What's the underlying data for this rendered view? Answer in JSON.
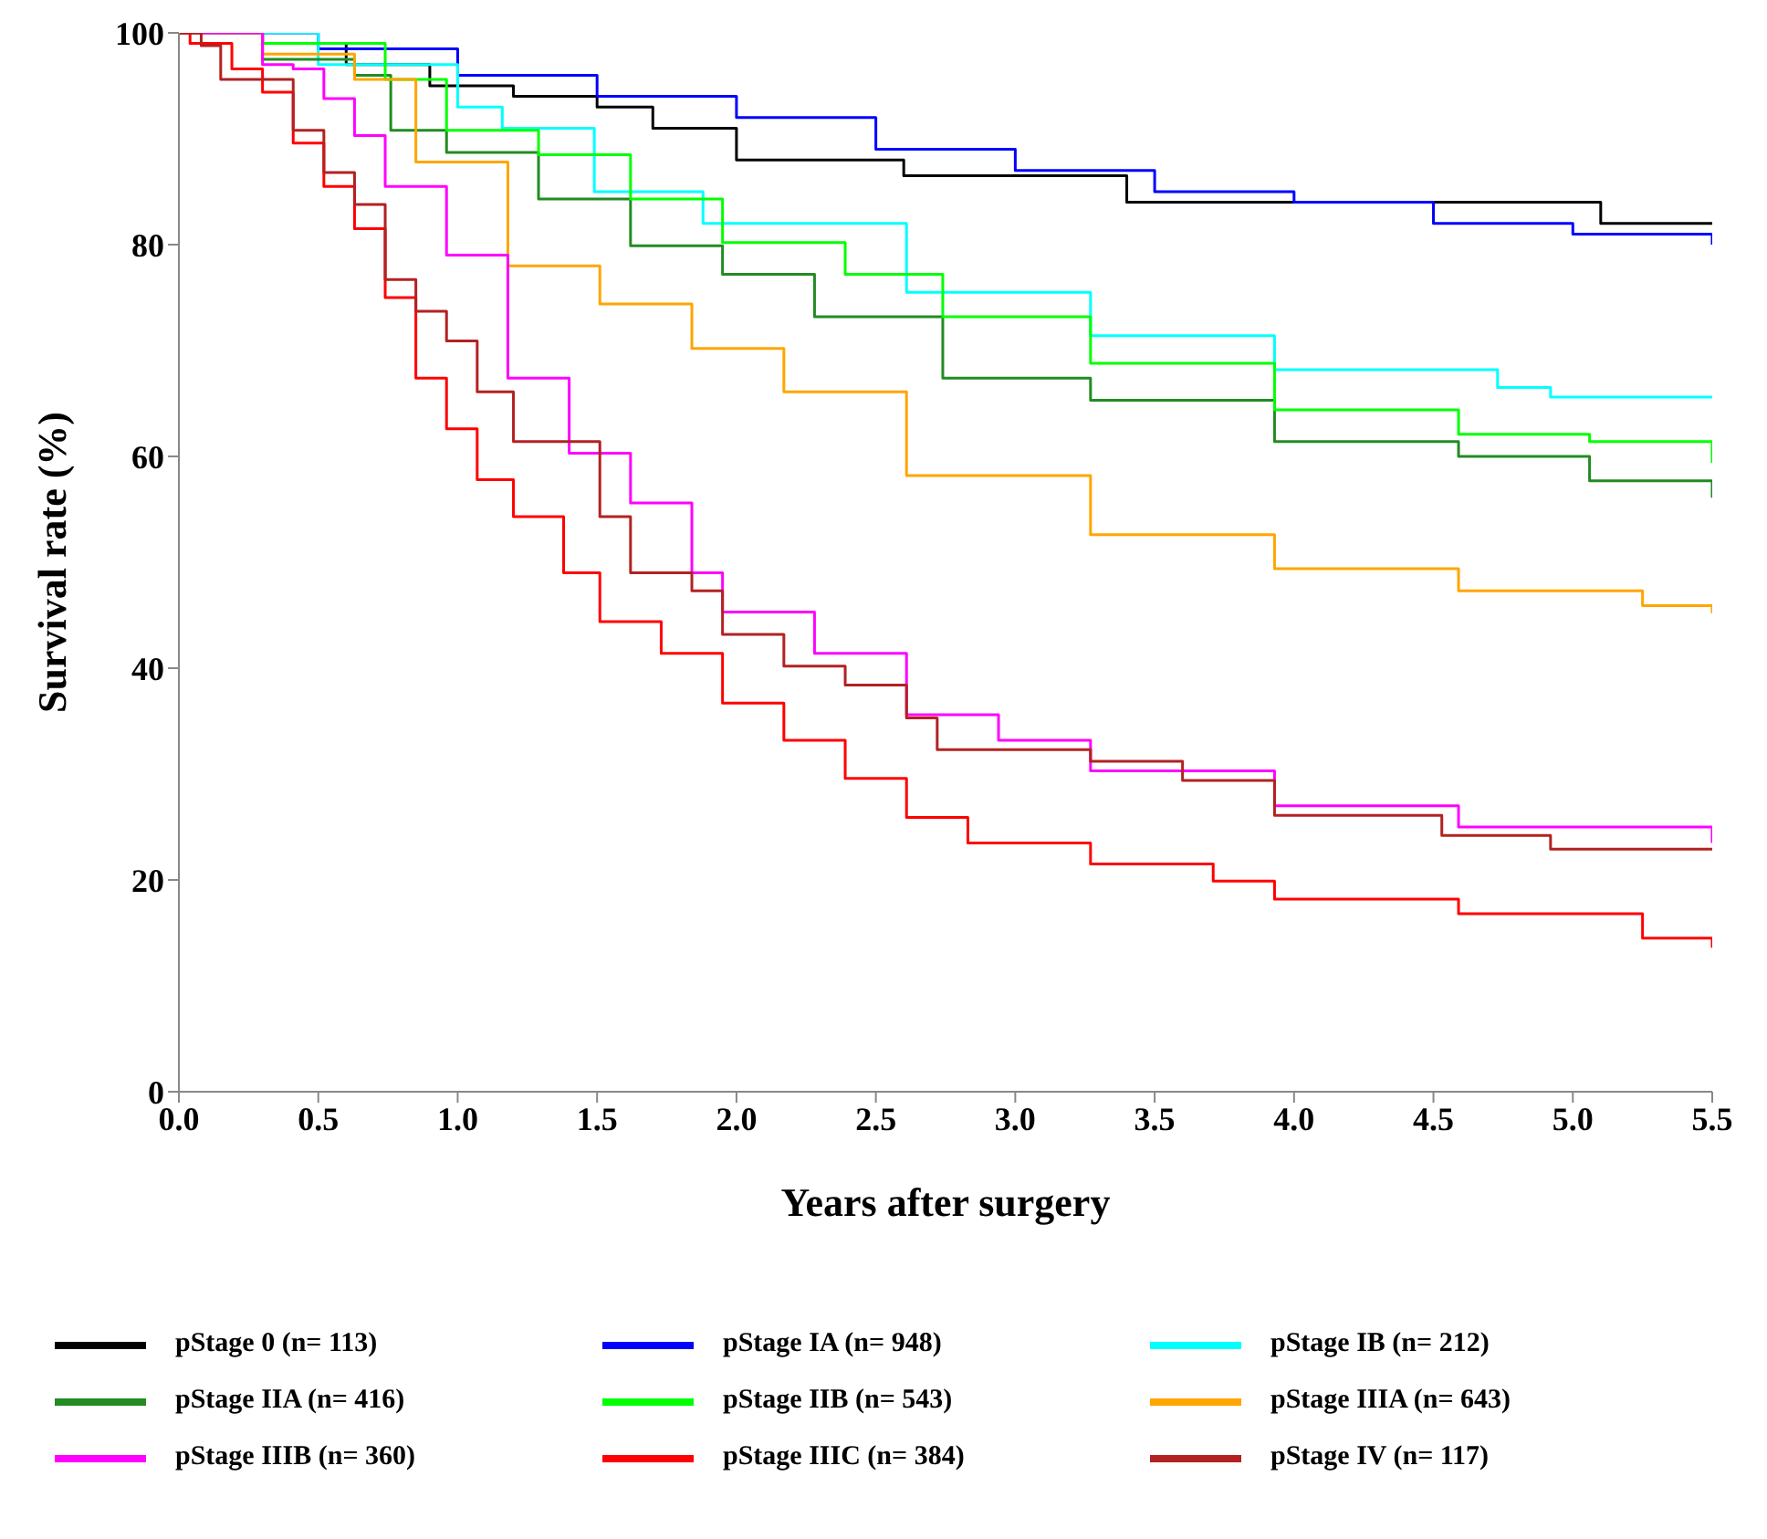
{
  "chart_data": {
    "type": "step",
    "xlabel": "Years after surgery",
    "ylabel": "Survival rate (%)",
    "xlim": [
      0,
      5.5
    ],
    "ylim": [
      0,
      100
    ],
    "xticks": [
      {
        "value": 0,
        "label": "0.0"
      },
      {
        "value": 0.5,
        "label": "0.5"
      },
      {
        "value": 1,
        "label": "1.0"
      },
      {
        "value": 1.5,
        "label": "1.5"
      },
      {
        "value": 2,
        "label": "2.0"
      },
      {
        "value": 2.5,
        "label": "2.5"
      },
      {
        "value": 3,
        "label": "3.0"
      },
      {
        "value": 3.5,
        "label": "3.5"
      },
      {
        "value": 4,
        "label": "4.0"
      },
      {
        "value": 4.5,
        "label": "4.5"
      },
      {
        "value": 5,
        "label": "5.0"
      },
      {
        "value": 5.5,
        "label": "5.5"
      }
    ],
    "yticks": [
      0,
      20,
      40,
      60,
      80,
      100
    ],
    "grid": false,
    "legend": "bottom",
    "marker": "none",
    "line_style": "solid",
    "series": [
      {
        "name": "pStage 0 (n= 113)",
        "color": "#000000",
        "x": [
          0,
          0.3,
          0.6,
          0.9,
          1.2,
          1.5,
          1.7,
          2.0,
          2.6,
          3.4,
          5.1,
          5.5
        ],
        "values": [
          100,
          99,
          97,
          95,
          94,
          93,
          91,
          88,
          86.5,
          84,
          82,
          82
        ]
      },
      {
        "name": "pStage IA (n= 948)",
        "color": "#0000ff",
        "x": [
          0,
          0.5,
          1.0,
          1.5,
          2.0,
          2.5,
          3.0,
          3.5,
          4.0,
          4.5,
          5.0,
          5.5
        ],
        "values": [
          100,
          98.5,
          96,
          94,
          92,
          89,
          87,
          85,
          84,
          82,
          81,
          80
        ]
      },
      {
        "name": "pStage IB (n= 212)",
        "color": "#00ffff",
        "x": [
          0,
          0.5,
          1.0,
          1.16,
          1.49,
          1.88,
          2.61,
          3.27,
          3.93,
          4.73,
          4.92,
          5.5
        ],
        "values": [
          100,
          97,
          93,
          91,
          85,
          82,
          75.5,
          71.4,
          68.2,
          66.5,
          65.6,
          65.6
        ]
      },
      {
        "name": "pStage IIA (n= 416)",
        "color": "#228b22",
        "x": [
          0,
          0.3,
          0.63,
          0.76,
          0.96,
          1.29,
          1.62,
          1.95,
          2.28,
          2.74,
          3.27,
          3.93,
          4.59,
          5.06,
          5.5
        ],
        "values": [
          100,
          97.5,
          96,
          90.8,
          88.7,
          84.3,
          79.9,
          77.2,
          73.2,
          67.4,
          65.3,
          61.4,
          60,
          57.7,
          56.1
        ]
      },
      {
        "name": "pStage IIB (n= 543)",
        "color": "#00ff00",
        "x": [
          0,
          0.3,
          0.74,
          0.96,
          1.29,
          1.62,
          1.95,
          2.39,
          2.74,
          3.27,
          3.93,
          4.59,
          5.06,
          5.5
        ],
        "values": [
          100,
          99,
          95.6,
          90.8,
          88.5,
          84.3,
          80.2,
          77.2,
          73.2,
          68.8,
          64.4,
          62.1,
          61.4,
          59.4
        ]
      },
      {
        "name": "pStage IIIA (n= 643)",
        "color": "#ffa500",
        "x": [
          0,
          0.3,
          0.63,
          0.85,
          1.18,
          1.51,
          1.84,
          2.17,
          2.61,
          3.27,
          3.93,
          4.59,
          5.25,
          5.5
        ],
        "values": [
          100,
          98,
          95.6,
          87.8,
          78,
          74.4,
          70.2,
          66.1,
          58.2,
          52.6,
          49.4,
          47.3,
          45.9,
          45.2
        ]
      },
      {
        "name": "pStage IIIB (n= 360)",
        "color": "#ff00ff",
        "x": [
          0,
          0.3,
          0.41,
          0.52,
          0.63,
          0.74,
          0.96,
          1.18,
          1.4,
          1.62,
          1.84,
          1.95,
          2.28,
          2.61,
          2.94,
          3.27,
          3.93,
          4.59,
          5.5
        ],
        "values": [
          100,
          97,
          96.6,
          93.8,
          90.3,
          85.5,
          79,
          67.4,
          60.3,
          55.6,
          49,
          45.3,
          41.4,
          35.6,
          33.2,
          30.3,
          27,
          25,
          23.5
        ]
      },
      {
        "name": "pStage IIIC (n= 384)",
        "color": "#ff0000",
        "x": [
          0,
          0.04,
          0.19,
          0.3,
          0.41,
          0.52,
          0.63,
          0.74,
          0.85,
          0.96,
          1.07,
          1.2,
          1.38,
          1.51,
          1.73,
          1.95,
          2.17,
          2.39,
          2.61,
          2.83,
          3.27,
          3.71,
          3.93,
          4.59,
          5.25,
          5.5
        ],
        "values": [
          100,
          99,
          96.6,
          94.4,
          89.6,
          85.5,
          81.5,
          75,
          67.4,
          62.6,
          57.8,
          54.3,
          49,
          44.4,
          41.4,
          36.7,
          33.2,
          29.6,
          25.9,
          23.5,
          21.5,
          19.9,
          18.2,
          16.8,
          14.5,
          13.6
        ]
      },
      {
        "name": "pStage IV (n= 117)",
        "color": "#b22222",
        "x": [
          0,
          0.08,
          0.15,
          0.41,
          0.52,
          0.63,
          0.74,
          0.85,
          0.96,
          1.07,
          1.2,
          1.38,
          1.51,
          1.62,
          1.84,
          1.95,
          2.17,
          2.39,
          2.61,
          2.72,
          3.27,
          3.6,
          3.93,
          4.53,
          4.92,
          5.5
        ],
        "values": [
          100,
          98.8,
          95.6,
          90.8,
          86.8,
          83.8,
          76.7,
          73.7,
          70.9,
          66.1,
          61.4,
          61.4,
          54.3,
          49,
          47.3,
          43.2,
          40.2,
          38.4,
          35.3,
          32.3,
          31.2,
          29.4,
          26.1,
          24.2,
          22.9,
          22.9
        ]
      }
    ]
  }
}
